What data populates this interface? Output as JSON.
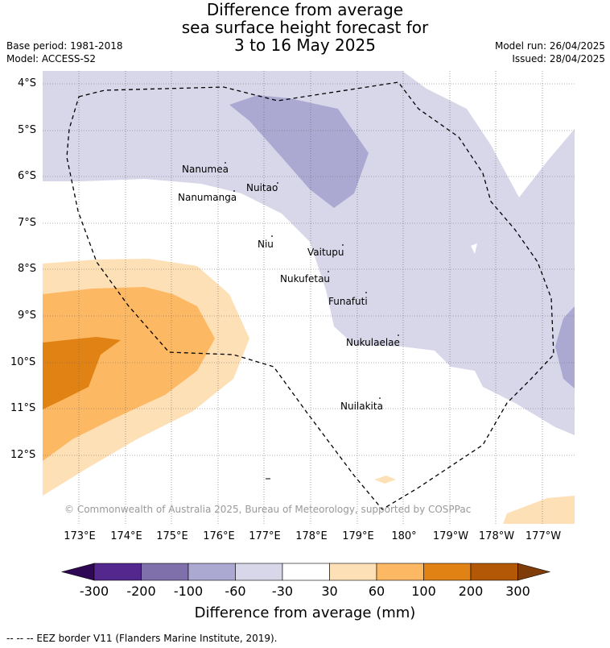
{
  "title": {
    "line1": "Difference from average",
    "line2": "sea surface height forecast for",
    "line3": "3 to 16 May 2025"
  },
  "meta": {
    "base_period": "Base period: 1981-2018",
    "model": "Model: ACCESS-S2",
    "model_run": "Model run: 26/04/2025",
    "issued": "Issued: 28/04/2025"
  },
  "lat_labels": [
    "4°S",
    "5°S",
    "6°S",
    "7°S",
    "8°S",
    "9°S",
    "10°S",
    "11°S",
    "12°S"
  ],
  "lon_labels": [
    "173°E",
    "174°E",
    "175°E",
    "176°E",
    "177°E",
    "178°E",
    "179°E",
    "180°",
    "179°W",
    "178°W",
    "177°W"
  ],
  "places": {
    "nanumea": "Nanumea",
    "nuitao": "Nuitao",
    "nanumanga": "Nanumanga",
    "niu": "Niu",
    "vaitupu": "Vaitupu",
    "nukufetau": "Nukufetau",
    "funafuti": "Funafuti",
    "nukulaelae": "Nukulaelae",
    "nuilakita": "Nuilakita"
  },
  "copyright": "© Commonwealth of Australia 2025, Bureau of Meteorology, supported by COSPPac",
  "colorbar": {
    "ticks": [
      "-300",
      "-200",
      "-100",
      "-60",
      "-30",
      "30",
      "60",
      "100",
      "200",
      "300"
    ],
    "colors": [
      "#2e0854",
      "#54278f",
      "#7f70ab",
      "#aba8d2",
      "#d7d7e9",
      "#ffffff",
      "#fee0b6",
      "#fdb863",
      "#e08214",
      "#b35806",
      "#7f3b08"
    ],
    "title": "Difference from average (mm)"
  },
  "footer": "--  --  -- EEZ border V11 (Flanders Marine Institute, 2019)."
}
